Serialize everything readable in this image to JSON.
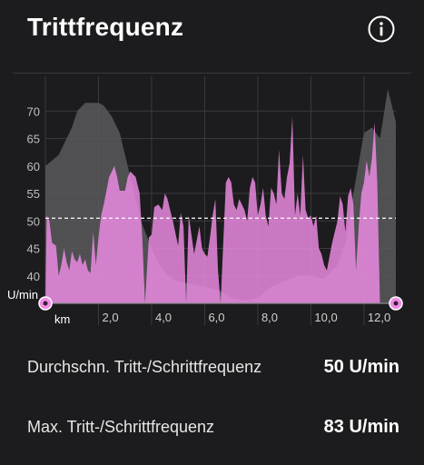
{
  "header": {
    "title": "Trittfrequenz",
    "info_icon": "info-circle-icon"
  },
  "chart_data": {
    "type": "area",
    "title": "Trittfrequenz",
    "xlabel": "km",
    "ylabel": "U/min",
    "xlim": [
      0,
      13.2
    ],
    "ylim": [
      35,
      75
    ],
    "x_ticks": [
      2,
      4,
      6,
      8,
      10,
      12
    ],
    "x_tick_labels": [
      "2,0",
      "4,0",
      "6,0",
      "8,0",
      "10,0",
      "12,0"
    ],
    "y_ticks": [
      40,
      45,
      50,
      55,
      60,
      65,
      70
    ],
    "average_line": 50.5,
    "grid": true,
    "colors": {
      "cadence": "#f08ce6",
      "elevation": "#59595c",
      "background": "#1c1c1e"
    },
    "series": [
      {
        "values": [
          [
            0.0,
            60
          ],
          [
            0.5,
            62
          ],
          [
            1.0,
            67
          ],
          [
            1.2,
            70
          ],
          [
            1.5,
            71.5
          ],
          [
            2.0,
            71.5
          ],
          [
            2.2,
            71
          ],
          [
            2.5,
            69
          ],
          [
            2.8,
            66
          ],
          [
            3.0,
            62
          ],
          [
            3.3,
            56
          ],
          [
            3.6,
            50
          ],
          [
            4.0,
            45
          ],
          [
            4.3,
            42
          ],
          [
            4.6,
            40
          ],
          [
            5.0,
            39
          ],
          [
            5.5,
            38.5
          ],
          [
            6.0,
            38
          ],
          [
            6.5,
            37.5
          ],
          [
            7.0,
            36
          ],
          [
            7.5,
            35.5
          ],
          [
            8.0,
            36
          ],
          [
            8.5,
            38
          ],
          [
            9.0,
            39
          ],
          [
            9.5,
            40
          ],
          [
            10.0,
            40
          ],
          [
            10.5,
            39.5
          ],
          [
            11.0,
            42
          ],
          [
            11.3,
            46
          ],
          [
            11.6,
            55
          ],
          [
            12.0,
            66
          ],
          [
            12.3,
            67
          ],
          [
            12.6,
            65
          ],
          [
            12.9,
            74
          ],
          [
            13.2,
            68
          ]
        ]
      },
      {
        "values": [
          [
            0.0,
            35
          ],
          [
            0.05,
            51
          ],
          [
            0.15,
            50
          ],
          [
            0.25,
            46
          ],
          [
            0.4,
            45.5
          ],
          [
            0.5,
            40
          ],
          [
            0.6,
            42
          ],
          [
            0.7,
            45
          ],
          [
            0.8,
            42.5
          ],
          [
            0.9,
            41
          ],
          [
            1.0,
            44.5
          ],
          [
            1.1,
            43
          ],
          [
            1.2,
            42.5
          ],
          [
            1.3,
            44
          ],
          [
            1.4,
            42
          ],
          [
            1.5,
            43
          ],
          [
            1.6,
            41
          ],
          [
            1.7,
            40.5
          ],
          [
            1.8,
            48
          ],
          [
            1.9,
            42
          ],
          [
            2.0,
            47
          ],
          [
            2.1,
            51
          ],
          [
            2.2,
            53
          ],
          [
            2.4,
            58
          ],
          [
            2.6,
            60
          ],
          [
            2.7,
            58
          ],
          [
            2.8,
            55.5
          ],
          [
            3.0,
            55.5
          ],
          [
            3.1,
            58
          ],
          [
            3.2,
            59
          ],
          [
            3.4,
            58
          ],
          [
            3.55,
            55
          ],
          [
            3.65,
            47
          ],
          [
            3.75,
            35
          ],
          [
            3.9,
            47
          ],
          [
            4.0,
            47.5
          ],
          [
            4.1,
            52.5
          ],
          [
            4.25,
            53
          ],
          [
            4.4,
            52
          ],
          [
            4.5,
            55
          ],
          [
            4.6,
            54
          ],
          [
            4.7,
            52
          ],
          [
            4.8,
            50
          ],
          [
            5.0,
            45.5
          ],
          [
            5.1,
            51.5
          ],
          [
            5.2,
            49
          ],
          [
            5.3,
            35
          ],
          [
            5.4,
            51
          ],
          [
            5.6,
            44
          ],
          [
            5.8,
            49
          ],
          [
            5.9,
            45
          ],
          [
            6.0,
            44
          ],
          [
            6.1,
            43.5
          ],
          [
            6.2,
            47
          ],
          [
            6.3,
            51
          ],
          [
            6.4,
            54
          ],
          [
            6.5,
            41
          ],
          [
            6.6,
            35
          ],
          [
            6.8,
            57
          ],
          [
            6.9,
            58
          ],
          [
            7.0,
            57
          ],
          [
            7.1,
            53
          ],
          [
            7.2,
            52
          ],
          [
            7.3,
            54
          ],
          [
            7.4,
            53
          ],
          [
            7.5,
            52
          ],
          [
            7.6,
            50
          ],
          [
            7.7,
            56
          ],
          [
            7.8,
            58
          ],
          [
            7.9,
            57
          ],
          [
            8.0,
            51
          ],
          [
            8.1,
            53
          ],
          [
            8.2,
            56
          ],
          [
            8.3,
            51
          ],
          [
            8.4,
            49
          ],
          [
            8.5,
            56
          ],
          [
            8.6,
            55
          ],
          [
            8.7,
            53
          ],
          [
            8.8,
            63
          ],
          [
            8.9,
            55
          ],
          [
            9.0,
            54
          ],
          [
            9.1,
            58
          ],
          [
            9.2,
            60.5
          ],
          [
            9.3,
            69
          ],
          [
            9.4,
            51
          ],
          [
            9.5,
            55
          ],
          [
            9.6,
            51
          ],
          [
            9.7,
            62
          ],
          [
            9.8,
            52
          ],
          [
            9.9,
            50.5
          ],
          [
            10.0,
            51
          ],
          [
            10.1,
            49
          ],
          [
            10.2,
            51
          ],
          [
            10.3,
            45
          ],
          [
            10.4,
            44
          ],
          [
            10.5,
            42
          ],
          [
            10.6,
            41
          ],
          [
            10.8,
            46
          ],
          [
            11.0,
            50
          ],
          [
            11.1,
            54.5
          ],
          [
            11.2,
            53
          ],
          [
            11.3,
            48
          ],
          [
            11.4,
            54.5
          ],
          [
            11.5,
            56
          ],
          [
            11.6,
            53
          ],
          [
            11.7,
            41
          ],
          [
            11.8,
            49
          ],
          [
            11.9,
            55
          ],
          [
            12.0,
            57
          ],
          [
            12.1,
            61
          ],
          [
            12.2,
            58
          ],
          [
            12.3,
            61.5
          ],
          [
            12.4,
            68
          ],
          [
            12.5,
            57
          ],
          [
            12.6,
            35
          ]
        ]
      }
    ]
  },
  "stats": [
    {
      "label": "Durchschn. Tritt-/Schrittfrequenz",
      "value": "50 U/min"
    },
    {
      "label": "Max. Tritt-/Schrittfrequenz",
      "value": "83 U/min"
    }
  ]
}
